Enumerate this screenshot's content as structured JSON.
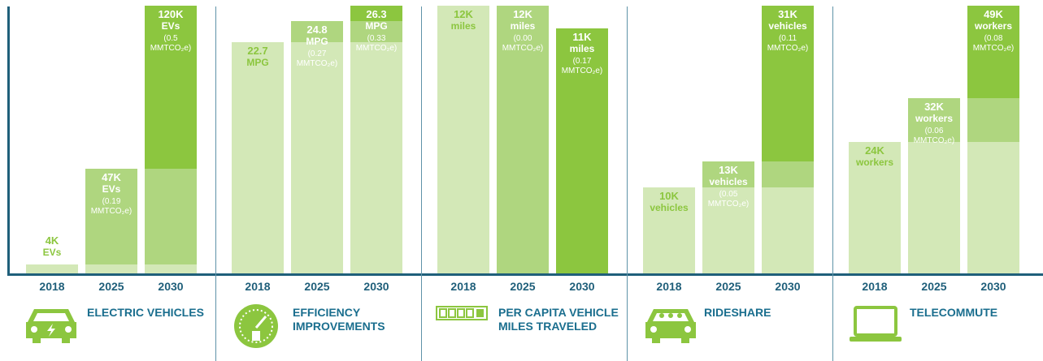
{
  "chart_data": [
    {
      "type": "bar",
      "title": "ELECTRIC VEHICLES",
      "categories": [
        "2018",
        "2025",
        "2030"
      ],
      "values": [
        4000,
        47000,
        120000
      ],
      "value_labels": [
        "4K",
        "47K",
        "120K"
      ],
      "unit": "EVs",
      "annotations": [
        null,
        "(0.19 MMTCO₂e)",
        "(0.5 MMTCO₂e)"
      ],
      "colors": [
        "#d3e8b7",
        "#afd67f",
        "#8cc63f"
      ]
    },
    {
      "type": "bar",
      "title": "EFFICIENCY IMPROVEMENTS",
      "categories": [
        "2018",
        "2025",
        "2030"
      ],
      "values": [
        22.7,
        24.8,
        26.3
      ],
      "unit": "MPG",
      "annotations": [
        null,
        "(0.27 MMTCO₂e)",
        "(0.33 MMTCO₂e)"
      ],
      "colors": [
        "#d3e8b7",
        "#afd67f",
        "#8cc63f"
      ]
    },
    {
      "type": "bar",
      "title": "PER CAPITA VEHICLE MILES TRAVELED",
      "categories": [
        "2018",
        "2025",
        "2030"
      ],
      "values": [
        12000,
        12000,
        11000
      ],
      "value_labels": [
        "12K",
        "12K",
        "11K"
      ],
      "unit": "miles",
      "annotations": [
        null,
        "(0.00 MMTCO₂e)",
        "(0.17 MMTCO₂e)"
      ],
      "colors": [
        "#d3e8b7",
        "#afd67f",
        "#8cc63f"
      ]
    },
    {
      "type": "bar",
      "title": "RIDESHARE",
      "categories": [
        "2018",
        "2025",
        "2030"
      ],
      "values": [
        10000,
        13000,
        31000
      ],
      "value_labels": [
        "10K",
        "13K",
        "31K"
      ],
      "unit": "vehicles",
      "annotations": [
        null,
        "(0.05 MMTCO₂e)",
        "(0.11 MMTCO₂e)"
      ],
      "colors": [
        "#d3e8b7",
        "#afd67f",
        "#8cc63f"
      ]
    },
    {
      "type": "bar",
      "title": "TELECOMMUTE",
      "categories": [
        "2018",
        "2025",
        "2030"
      ],
      "values": [
        24000,
        32000,
        49000
      ],
      "value_labels": [
        "24K",
        "32K",
        "49K"
      ],
      "unit": "workers",
      "annotations": [
        null,
        "(0.06 MMTCO₂e)",
        "(0.08 MMTCO₂e)"
      ],
      "colors": [
        "#d3e8b7",
        "#afd67f",
        "#8cc63f"
      ]
    }
  ]
}
